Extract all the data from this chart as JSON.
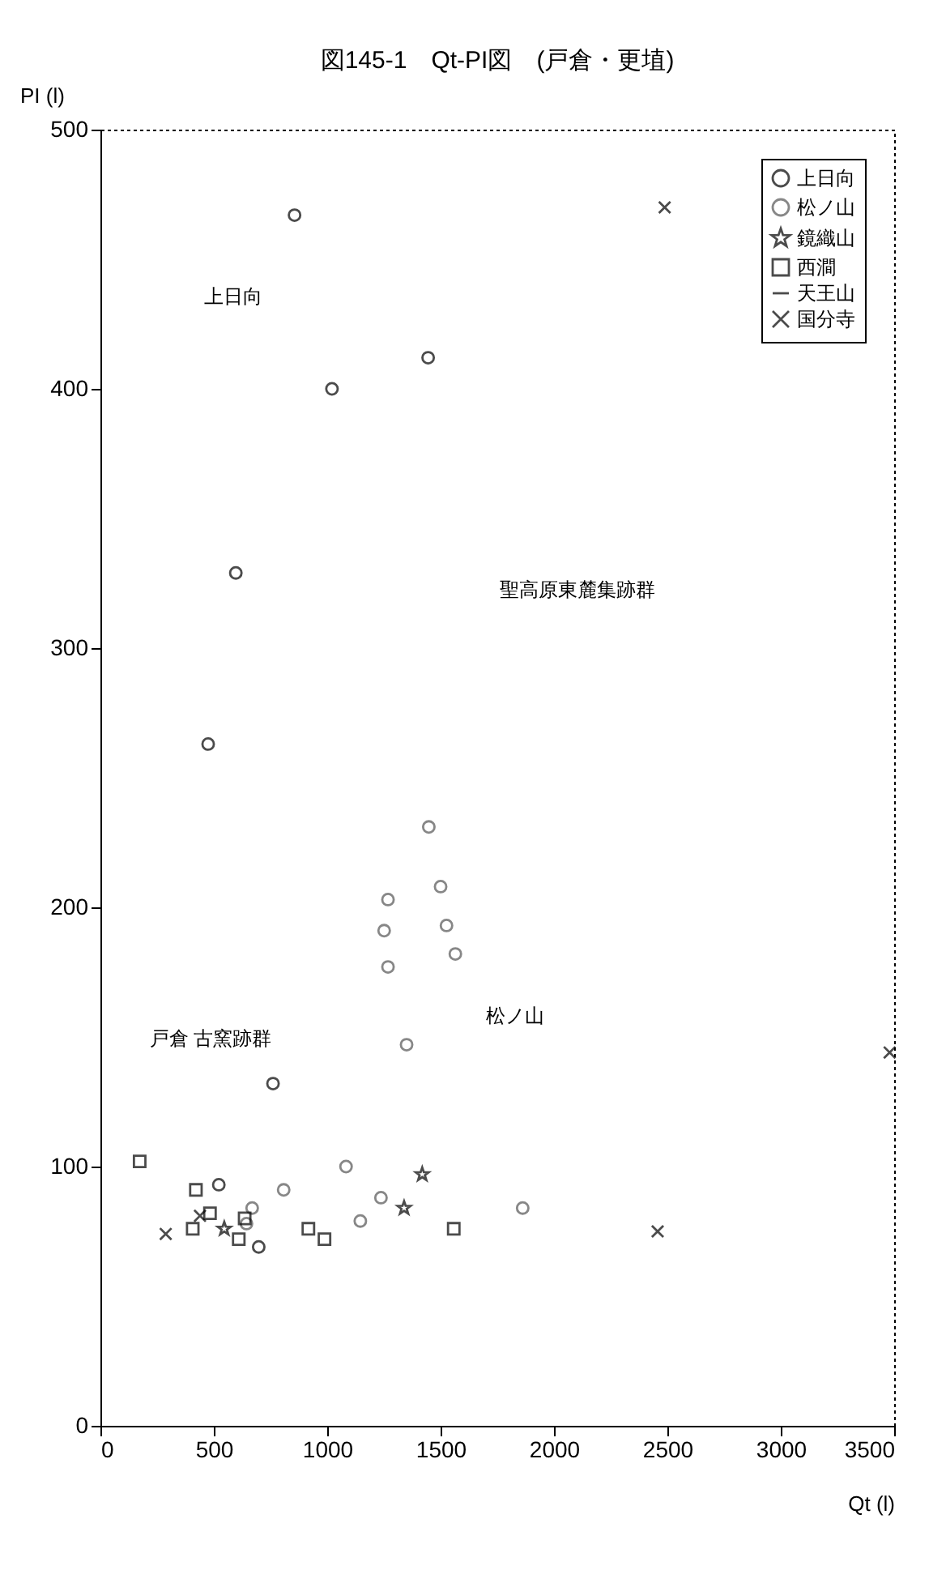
{
  "chart_data": {
    "type": "scatter",
    "title": "図145-1　Qt-PI図　(戸倉・更埴)",
    "xlabel": "Qt (l)",
    "ylabel": "PI (l)",
    "xlim": [
      0,
      3500
    ],
    "xticks": [
      0,
      500,
      1000,
      1500,
      2000,
      2500,
      3000,
      3500
    ],
    "ylim": [
      0,
      500
    ],
    "yticks": [
      0,
      100,
      200,
      300,
      400,
      500
    ],
    "legend": "top right",
    "series": [
      {
        "name": "上日向",
        "color": "#000000",
        "marker": "circle",
        "x": [
          856,
          1021,
          597,
          475,
          761,
          522,
          698,
          1445
        ],
        "values": [
          467,
          400,
          329,
          263,
          132,
          93,
          69,
          412
        ]
      },
      {
        "name": "松ノ山",
        "color": "#555555",
        "marker": "circle",
        "x": [
          1448,
          1500,
          1526,
          1565,
          1350,
          1268,
          1251,
          1268,
          1237,
          1862,
          1146,
          1083,
          808,
          669,
          644
        ],
        "values": [
          231,
          208,
          193,
          182,
          147,
          203,
          191,
          177,
          88,
          84,
          79,
          100,
          91,
          84,
          78
        ]
      },
      {
        "name": "鏡織山",
        "color": "#000000",
        "marker": "star",
        "x": [
          1419,
          1339,
          546
        ],
        "values": [
          97,
          84,
          76
        ]
      },
      {
        "name": "西澗",
        "color": "#000000",
        "marker": "square",
        "x": [
          1558,
          988,
          917,
          610,
          483,
          421,
          407,
          173,
          636
        ],
        "values": [
          76,
          72,
          76,
          72,
          82,
          91,
          76,
          102,
          80
        ]
      },
      {
        "name": "天王山",
        "color": "#000000"
      },
      {
        "name": "国分寺",
        "color": "#000000",
        "marker": "cross",
        "x": [
          288,
          439,
          2457,
          2488,
          3480
        ],
        "values": [
          74,
          81,
          75,
          470,
          144
        ]
      }
    ],
    "annotations": [
      "聖高原東麓集跡群",
      "松ノ山",
      "上日向",
      "戸倉 古窯跡群"
    ]
  }
}
